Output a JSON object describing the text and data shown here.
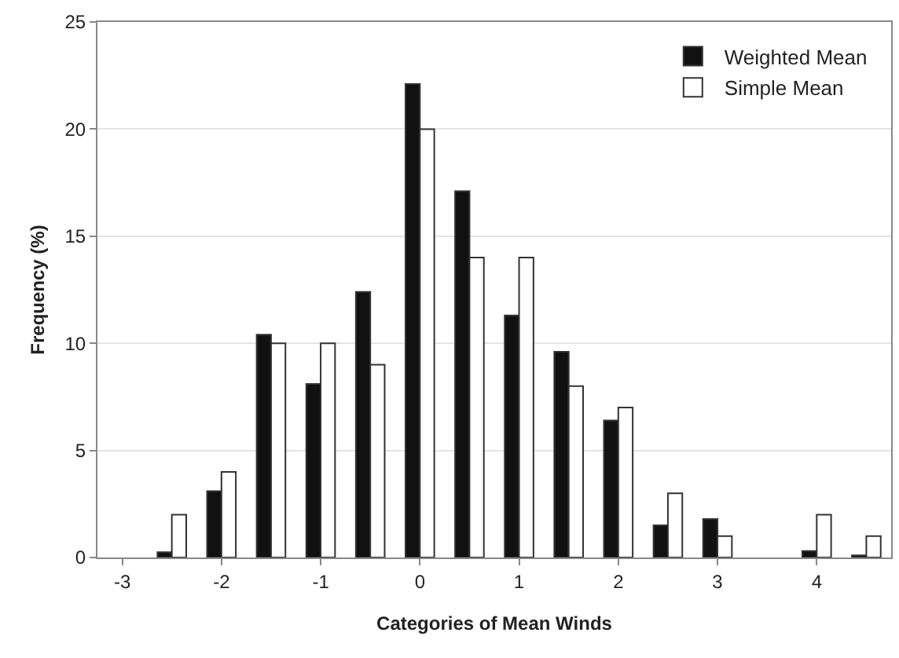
{
  "chart_data": {
    "type": "bar",
    "xlabel": "Categories of Mean Winds",
    "ylabel": "Frequency (%)",
    "x": [
      -2.5,
      -2,
      -1.5,
      -1,
      -0.5,
      0,
      0.5,
      1,
      1.5,
      2,
      2.5,
      3,
      3.5,
      4,
      4.5
    ],
    "series": [
      {
        "name": "Weighted Mean",
        "color": "#111111",
        "values": [
          0.25,
          3.1,
          10.4,
          8.1,
          12.4,
          22.1,
          17.1,
          11.3,
          9.6,
          6.4,
          1.5,
          1.8,
          null,
          0.3,
          0.1
        ]
      },
      {
        "name": "Simple Mean",
        "color": "#ffffff",
        "values": [
          2,
          4,
          10,
          10,
          9,
          20,
          14,
          14,
          8,
          7,
          3,
          1,
          null,
          2,
          1
        ]
      }
    ],
    "xlim": [
      -3.25,
      4.75
    ],
    "xticks": [
      -3,
      -2,
      -1,
      0,
      1,
      2,
      3,
      4
    ],
    "ylim": [
      0,
      25
    ],
    "yticks": [
      0,
      5,
      10,
      15,
      20,
      25
    ],
    "grid": "y",
    "legend": "top right"
  }
}
